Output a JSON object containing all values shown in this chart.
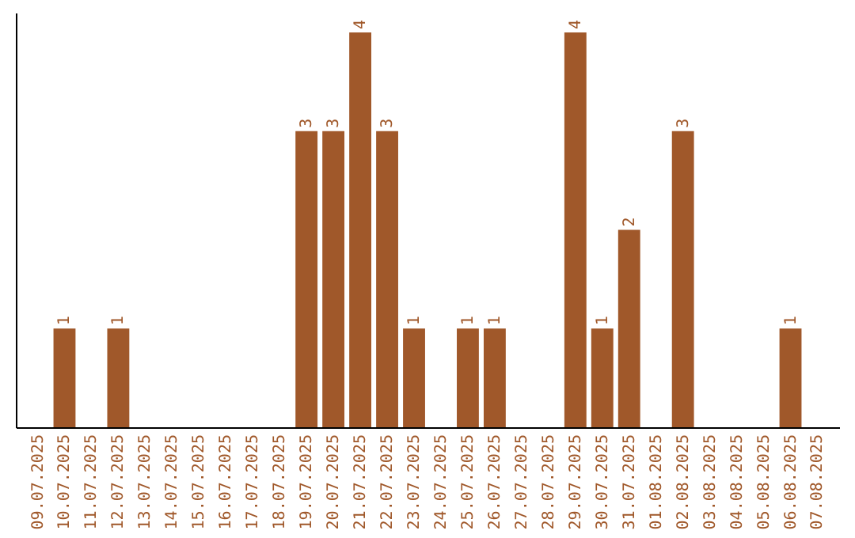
{
  "chart_data": {
    "type": "bar",
    "categories": [
      "09.07.2025",
      "10.07.2025",
      "11.07.2025",
      "12.07.2025",
      "13.07.2025",
      "14.07.2025",
      "15.07.2025",
      "16.07.2025",
      "17.07.2025",
      "18.07.2025",
      "19.07.2025",
      "20.07.2025",
      "21.07.2025",
      "22.07.2025",
      "23.07.2025",
      "24.07.2025",
      "25.07.2025",
      "26.07.2025",
      "27.07.2025",
      "28.07.2025",
      "29.07.2025",
      "30.07.2025",
      "31.07.2025",
      "01.08.2025",
      "02.08.2025",
      "03.08.2025",
      "04.08.2025",
      "05.08.2025",
      "06.08.2025",
      "07.08.2025"
    ],
    "values": [
      0,
      1,
      0,
      1,
      0,
      0,
      0,
      0,
      0,
      0,
      3,
      3,
      4,
      3,
      1,
      0,
      1,
      1,
      0,
      0,
      4,
      1,
      2,
      0,
      3,
      0,
      0,
      0,
      1,
      0
    ],
    "color": "#a0582a",
    "ylim": [
      0,
      4.2
    ],
    "value_labels": [
      null,
      "1",
      null,
      "1",
      null,
      null,
      null,
      null,
      null,
      null,
      "3",
      "3",
      "4",
      "3",
      "1",
      null,
      "1",
      "1",
      null,
      null,
      "4",
      "1",
      "2",
      null,
      "3",
      null,
      null,
      null,
      "1",
      null
    ],
    "tick_labels": "x"
  }
}
